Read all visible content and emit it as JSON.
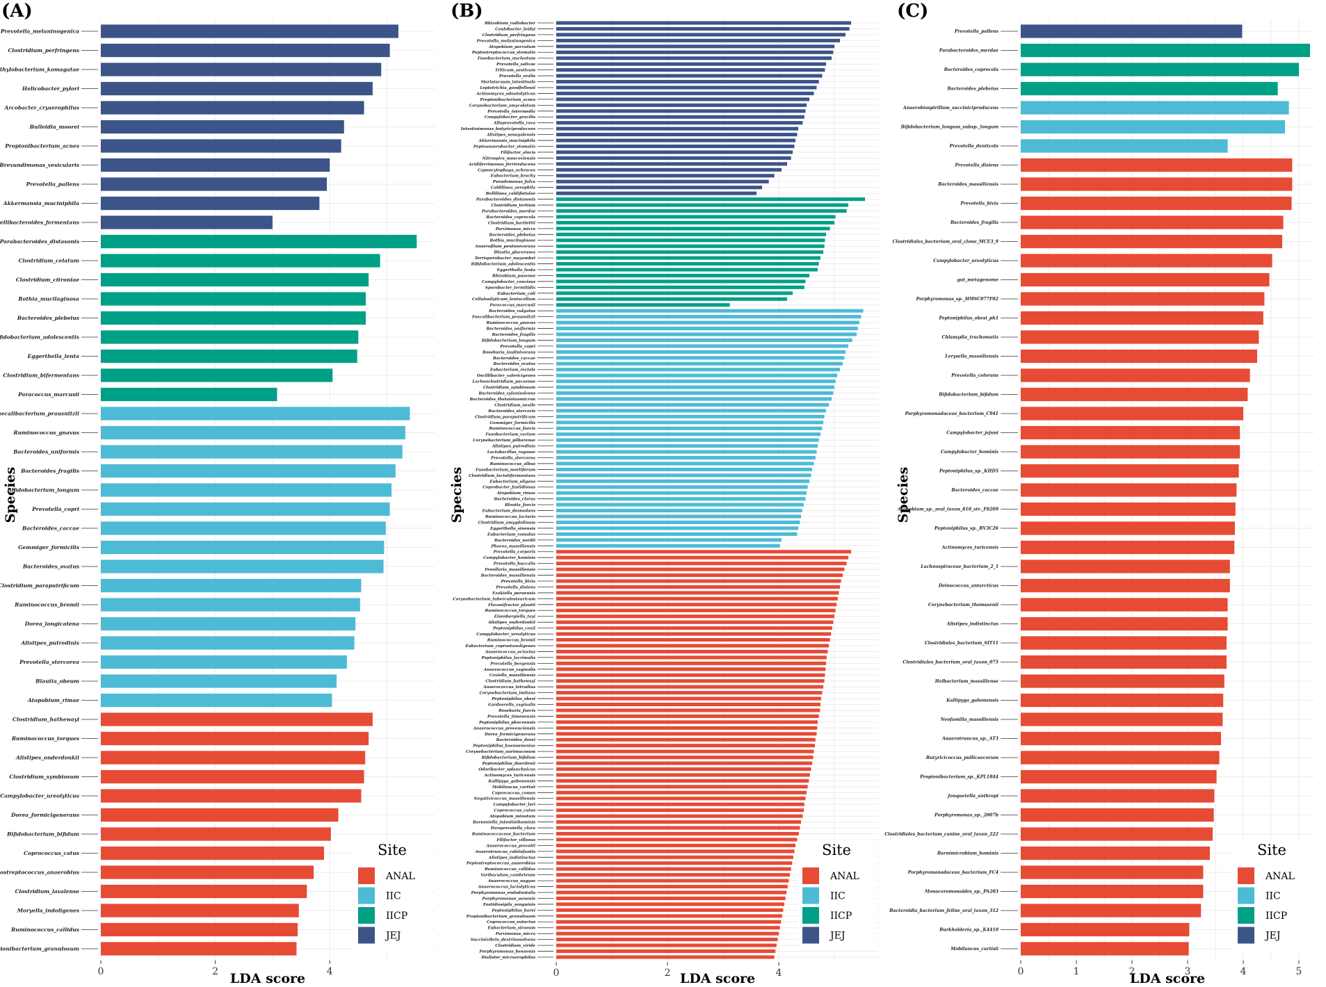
{
  "colors": {
    "ANAL": "#e64b35",
    "IIC": "#4dbbd5",
    "IICP": "#00a087",
    "JEJ": "#3c5488"
  },
  "legend": {
    "title": "Site",
    "entries": [
      "ANAL",
      "IIC",
      "IICP",
      "JEJ"
    ]
  },
  "chart_data": [
    {
      "type": "bar",
      "panel": "(A)",
      "xlabel": "LDA score",
      "ylabel": "Species",
      "xlim": [
        0,
        5.8
      ],
      "xticks": [
        0,
        2,
        4
      ],
      "groups": [
        {
          "site": "JEJ",
          "species": [
            "Prevotella_melaninogenica",
            "Clostridium_perfringens",
            "Methylobacterium_komagatae",
            "Helicobacter_pylori",
            "Arcobacter_cryaerophilus",
            "Bulleidia_moorei",
            "Propionibacterium_acnes",
            "Brevundimonas_vesicularis",
            "Prevotella_pallens",
            "Akkermansia_muciniphila",
            "Macellibacteroides_fermentans"
          ],
          "values": [
            5.2,
            5.05,
            4.9,
            4.75,
            4.6,
            4.25,
            4.2,
            4.0,
            3.95,
            3.82,
            3.0
          ]
        },
        {
          "site": "IICP",
          "species": [
            "Parabacteroides_distasonis",
            "Clostridium_celatum",
            "Clostridium_citroniae",
            "Rothia_mucilaginosa",
            "Bacteroides_plebeius",
            "Bifidobacterium_adolescentis",
            "Eggerthella_lenta",
            "Clostridium_bifermentans",
            "Paracoccus_marcusii"
          ],
          "values": [
            5.52,
            4.88,
            4.68,
            4.63,
            4.63,
            4.5,
            4.48,
            4.05,
            3.08
          ]
        },
        {
          "site": "IIC",
          "species": [
            "Faecalibacterium_prausnitzii",
            "Ruminococcus_gnavus",
            "Bacteroides_uniformis",
            "Bacteroides_fragilis",
            "Bifidobacterium_longum",
            "Prevotella_copri",
            "Bacteroides_caccae",
            "Gemmiger_formicilis",
            "Bacteroides_ovatus",
            "Clostridium_paraputrificum",
            "Ruminococcus_bromii",
            "Dorea_longicatena",
            "Alistipes_putredinis",
            "Prevotella_stercorea",
            "Blautia_obeum",
            "Atopobium_rimae"
          ],
          "values": [
            5.4,
            5.32,
            5.27,
            5.15,
            5.08,
            5.05,
            4.98,
            4.95,
            4.94,
            4.55,
            4.53,
            4.45,
            4.43,
            4.3,
            4.12,
            4.04
          ]
        },
        {
          "site": "ANAL",
          "species": [
            "Clostridium_hathewayi",
            "Ruminococcus_torques",
            "Alistipes_onderdonkii",
            "Clostridium_symbiosum",
            "Campylobacter_ureolyticus",
            "Dorea_formicigenerans",
            "Bifidobacterium_bifidum",
            "Coprococcus_catus",
            "Peptostreptococcus_anaerobius",
            "Clostridium_lavalense",
            "Moryella_indoligenes",
            "Ruminococcus_callidus",
            "Propionibacterium_granulosum"
          ],
          "values": [
            4.75,
            4.68,
            4.62,
            4.6,
            4.55,
            4.15,
            4.02,
            3.9,
            3.72,
            3.6,
            3.46,
            3.44,
            3.42
          ]
        }
      ]
    },
    {
      "type": "bar",
      "panel": "(B)",
      "xlabel": "LDA score",
      "ylabel": "Species",
      "xlim": [
        0,
        5.8
      ],
      "xticks": [
        0,
        2,
        4
      ],
      "groups": [
        {
          "site": "JEJ",
          "species": [
            "Rhizobium_radiobacter",
            "Caulobacter_leidyi",
            "Clostridium_perfringens",
            "Prevotella_melaninogenica",
            "Atopobium_parvulum",
            "Peptostreptococcus_stomatis",
            "Fusobacterium_nucleatum",
            "Prevotella_salivae",
            "Triticum_aestivum",
            "Prevotella_oralis",
            "Mariniacuum_intestinale",
            "Leptotrichia_goodfellowii",
            "Actinomyces_odontolyticus",
            "Propionibacterium_acnes",
            "Corynebacterium_amycolatum",
            "Prevotella_intermedia",
            "Campylobacter_gracilis",
            "Alloprevotella_rava",
            "Intestinimonas_butyriciproducens",
            "Alistipes_senegalensis",
            "Akkermansia_muciniphila",
            "Peptoanaerobacter_stomatis",
            "Filifactor_alocis",
            "Nitrospira_moscoviensis",
            "Acidiferrimonas_ferrireducens",
            "Capnocytophaga_ochracea",
            "Eubacterium_brachy",
            "Pseudomonas_fulva",
            "Caldilinea_aerophila",
            "Bellilinea_caldifistulae"
          ],
          "values": [
            5.3,
            5.27,
            5.2,
            5.1,
            5.0,
            4.98,
            4.95,
            4.85,
            4.83,
            4.78,
            4.72,
            4.68,
            4.63,
            4.55,
            4.5,
            4.48,
            4.46,
            4.43,
            4.35,
            4.33,
            4.3,
            4.28,
            4.25,
            4.22,
            4.15,
            4.05,
            3.92,
            3.82,
            3.7,
            3.6
          ]
        },
        {
          "site": "IICP",
          "species": [
            "Parabacteroides_distasonis",
            "Clostridium_tertium",
            "Parabacteroides_merdae",
            "Bacteroides_coprocola",
            "Clostridium_bartlettii",
            "Parvimonas_micra",
            "Bacteroides_plebeius",
            "Rothia_mucilaginosa",
            "Anaerofilum_pentosovorans",
            "Blautia_glucerasea",
            "Terrisporobacter_mayombei",
            "Bifidobacterium_adolescentis",
            "Eggerthella_lenta",
            "Rhizobium_pusense",
            "Campylobacter_concisus",
            "Sporobacter_termitidis",
            "Eubacterium_coli",
            "Cellulosilyticum_lentocellum",
            "Paracoccus_marcusii"
          ],
          "values": [
            5.55,
            5.25,
            5.22,
            5.02,
            5.0,
            4.92,
            4.85,
            4.83,
            4.82,
            4.8,
            4.75,
            4.72,
            4.7,
            4.55,
            4.48,
            4.46,
            4.25,
            4.15,
            3.12
          ]
        },
        {
          "site": "IIC",
          "species": [
            "Bacteroides_vulgatus",
            "Faecalibacterium_prausnitzii",
            "Ruminococcus_gnavus",
            "Bacteroides_uniformis",
            "Bacteroides_fragilis",
            "Bifidobacterium_longum",
            "Prevotella_copri",
            "Roseburia_inulinivorans",
            "Bacteroides_caccae",
            "Bacteroides_ovatus",
            "Eubacterium_rectale",
            "Oscillibacter_valericigenes",
            "Lachnoclostridium_pacaense",
            "Clostridium_symbiosum",
            "Bacteroides_xylanisolvens",
            "Bacteroides_thetaiotaomicron",
            "Clostridium_nexile",
            "Bacteroides_stercoris",
            "Clostridium_paraputrificum",
            "Gemmiger_formicilis",
            "Ruminococcus_faecis",
            "Fusobacterium_varium",
            "Corynebacterium_pilbarense",
            "Alistipes_putredinis",
            "Lactobacillus_rogosae",
            "Prevotella_stercorea",
            "Ruminococcus_albus",
            "Fusobacterium_mortiferum",
            "Clostridium_lactatifermentans",
            "Eubacterium_eligens",
            "Coprobacter_fastidiosus",
            "Atopobium_rimae",
            "Bacteroides_clarus",
            "Blautia_faecis",
            "Eubacterium_desmolans",
            "Ruminococcus_lactaris",
            "Clostridium_amygdalinum",
            "Eggerthella_sinensis",
            "Eubacterium_ramulus",
            "Bacteroides_nordii",
            "Phocea_massiliensis"
          ],
          "values": [
            5.52,
            5.48,
            5.45,
            5.42,
            5.4,
            5.32,
            5.25,
            5.2,
            5.18,
            5.15,
            5.1,
            5.05,
            5.02,
            5.0,
            4.98,
            4.95,
            4.9,
            4.85,
            4.82,
            4.8,
            4.78,
            4.75,
            4.72,
            4.7,
            4.68,
            4.66,
            4.63,
            4.6,
            4.58,
            4.55,
            4.52,
            4.5,
            4.48,
            4.45,
            4.42,
            4.4,
            4.38,
            4.35,
            4.33,
            4.05,
            4.02
          ]
        },
        {
          "site": "ANAL",
          "species": [
            "Prevotella_corporis",
            "Campylobacter_hominis",
            "Prevotella_buccalis",
            "Fenollaria_massiliensis",
            "Bacteroides_massiliensis",
            "Prevotella_bivia",
            "Prevotella_disiens",
            "Ezakiella_peruensis",
            "Corynebacterium_tuberculostearicum",
            "Flavonifractor_plautii",
            "Ruminococcus_torques",
            "Eisenbergiella_tayi",
            "Alistipes_onderdonkii",
            "Peptoniphilus_coxii",
            "Campylobacter_ureolyticus",
            "Ruminococcus_bromii",
            "Eubacterium_coprostanoligenes",
            "Anaerococcus_octavius",
            "Peptoniphilus_lacrimalis",
            "Prevotella_bergensis",
            "Anaerococcus_vaginalis",
            "Coxiella_massiliensis",
            "Clostridium_hathewayi",
            "Anaerococcus_tetradius",
            "Corynebacterium_imitans",
            "Peptoniphilus_obesi",
            "Gardnerella_vaginalis",
            "Roseburia_faecis",
            "Prevotella_timonensis",
            "Peptoniphilus_phoceensis",
            "Anaerococcus_provenciensis",
            "Dorea_formicigenerans",
            "Bacteroides_dorei",
            "Peptoniphilus_koenoeneniae",
            "Corynebacterium_aurimucosum",
            "Bifidobacterium_bifidum",
            "Peptoniphilus_duerdenii",
            "Odoribacter_splanchnicus",
            "Actinomyces_turicensis",
            "Kallipyga_gabonensis",
            "Mobiluncus_curtisii",
            "Coprococcus_comes",
            "Negativicoccus_massiliensis",
            "Campylobacter_lari",
            "Coprococcus_catus",
            "Atopobium_minutum",
            "Barnesiella_intestinihominis",
            "Paraprevotella_clara",
            "Ruminococcaceae_bacterium",
            "Filifactor_villosus",
            "Anaerococcus_prevotii",
            "Anaerotruncus_rubiinfantis",
            "Alistipes_indistinctus",
            "Peptostreptococcus_anaerobius",
            "Ruminococcus_callidus",
            "Varibaculum_cambriense",
            "Anaerococcus_nagyae",
            "Anaerococcus_lactolyticus",
            "Porphyromonas_endodontalis",
            "Porphyromonas_uenonis",
            "Fastidiosipila_sanguinis",
            "Peptoniphilus_harei",
            "Propionibacterium_granulosum",
            "Coprococcus_eutactus",
            "Eubacterium_siraeum",
            "Parvimonas_micra",
            "Succinivibrio_dextrinosolvens",
            "Clostridium_viride",
            "Porphyromonas_bennonis",
            "Dialister_micraerophilus"
          ],
          "values": [
            5.3,
            5.25,
            5.22,
            5.18,
            5.15,
            5.12,
            5.1,
            5.08,
            5.06,
            5.04,
            5.02,
            5.0,
            4.98,
            4.96,
            4.94,
            4.92,
            4.9,
            4.88,
            4.86,
            4.85,
            4.84,
            4.83,
            4.82,
            4.8,
            4.78,
            4.76,
            4.75,
            4.74,
            4.72,
            4.7,
            4.69,
            4.68,
            4.66,
            4.65,
            4.63,
            4.62,
            4.6,
            4.58,
            4.56,
            4.54,
            4.52,
            4.5,
            4.48,
            4.46,
            4.45,
            4.43,
            4.4,
            4.38,
            4.36,
            4.33,
            4.3,
            4.28,
            4.26,
            4.24,
            4.22,
            4.2,
            4.18,
            4.16,
            4.14,
            4.12,
            4.1,
            4.08,
            4.06,
            4.04,
            4.02,
            4.0,
            3.98,
            3.96,
            3.94,
            3.92
          ]
        }
      ]
    },
    {
      "type": "bar",
      "panel": "(C)",
      "xlabel": "LDA score",
      "ylabel": "Species",
      "xlim": [
        0,
        5.5
      ],
      "xticks": [
        0,
        1,
        2,
        3,
        4,
        5
      ],
      "groups": [
        {
          "site": "JEJ",
          "species": [
            "Prevotella_pallens"
          ],
          "values": [
            3.98
          ]
        },
        {
          "site": "IICP",
          "species": [
            "Parabacteroides_merdae",
            "Bacteroides_coprocola",
            "Bacteroides_plebeius"
          ],
          "values": [
            5.2,
            5.0,
            4.62
          ]
        },
        {
          "site": "IIC",
          "species": [
            "Anaerobiospirillum_succiniciproducens",
            "Bifidobacterium_longum_subsp._longum",
            "Prevotella_denticola"
          ],
          "values": [
            4.82,
            4.75,
            3.72
          ]
        },
        {
          "site": "ANAL",
          "species": [
            "Prevotella_disiens",
            "Bacteroides_massiliensis",
            "Prevotella_bivia",
            "Bacteroides_fragilis",
            "Clostridiales_bacterium_oral_clone_MCE3_9",
            "Campylobacter_ureolyticus",
            "gut_metagenome",
            "Porphyromonas_sp._HMSC077F02",
            "Peptoniphilus_obesi_ph1",
            "Chlamydia_trachomatis",
            "Lerysella_massiliensis",
            "Prevotella_colorans",
            "Bifidobacterium_bifidum",
            "Porphyromonadaceae_bacterium_C941",
            "Campylobacter_jejuni",
            "Campylobacter_hominis",
            "Peptoniphilus_sp._KHD5",
            "Bacteroides_caccae",
            "Atopobium_sp._oral_taxon_810_str._F0209",
            "Peptoniphilus_sp._BV3C26",
            "Actinomyces_turicensis",
            "Lachnospiraceae_bacterium_2_1",
            "Deinococcus_antarcticus",
            "Corynebacterium_thomssenii",
            "Alistipes_indistinctus",
            "Clostridiales_bacterium_SIT11",
            "Clostridiales_bacterium_oral_taxon_075",
            "Helbacterium_massiliense",
            "Kallipyga_gabonensis",
            "Neofamilia_massiliensis",
            "Anaerotruncus_sp._AT3",
            "Butyricicoccus_pullicaecorum",
            "Propionibacterium_sp._KPL1844",
            "Jonquetella_anthropi",
            "Porphyromonas_sp._2007b",
            "Clostridiales_bacterium_canine_oral_taxon_222",
            "Barnimicrobium_hominis",
            "Porphyromonadaceae_bacterium_FC4",
            "Monoceromonoides_sp._PA203",
            "Bacteroidia_bacterium_feline_oral_taxon_312",
            "Burkholderia_sp._K4410",
            "Mobiluncus_curtisii"
          ],
          "values": [
            4.88,
            4.88,
            4.87,
            4.72,
            4.7,
            4.52,
            4.47,
            4.38,
            4.36,
            4.28,
            4.25,
            4.12,
            4.08,
            4.0,
            3.94,
            3.94,
            3.92,
            3.88,
            3.86,
            3.85,
            3.84,
            3.76,
            3.76,
            3.72,
            3.72,
            3.7,
            3.7,
            3.66,
            3.64,
            3.63,
            3.6,
            3.57,
            3.52,
            3.48,
            3.47,
            3.45,
            3.4,
            3.28,
            3.28,
            3.24,
            3.03,
            3.02
          ]
        }
      ]
    }
  ]
}
